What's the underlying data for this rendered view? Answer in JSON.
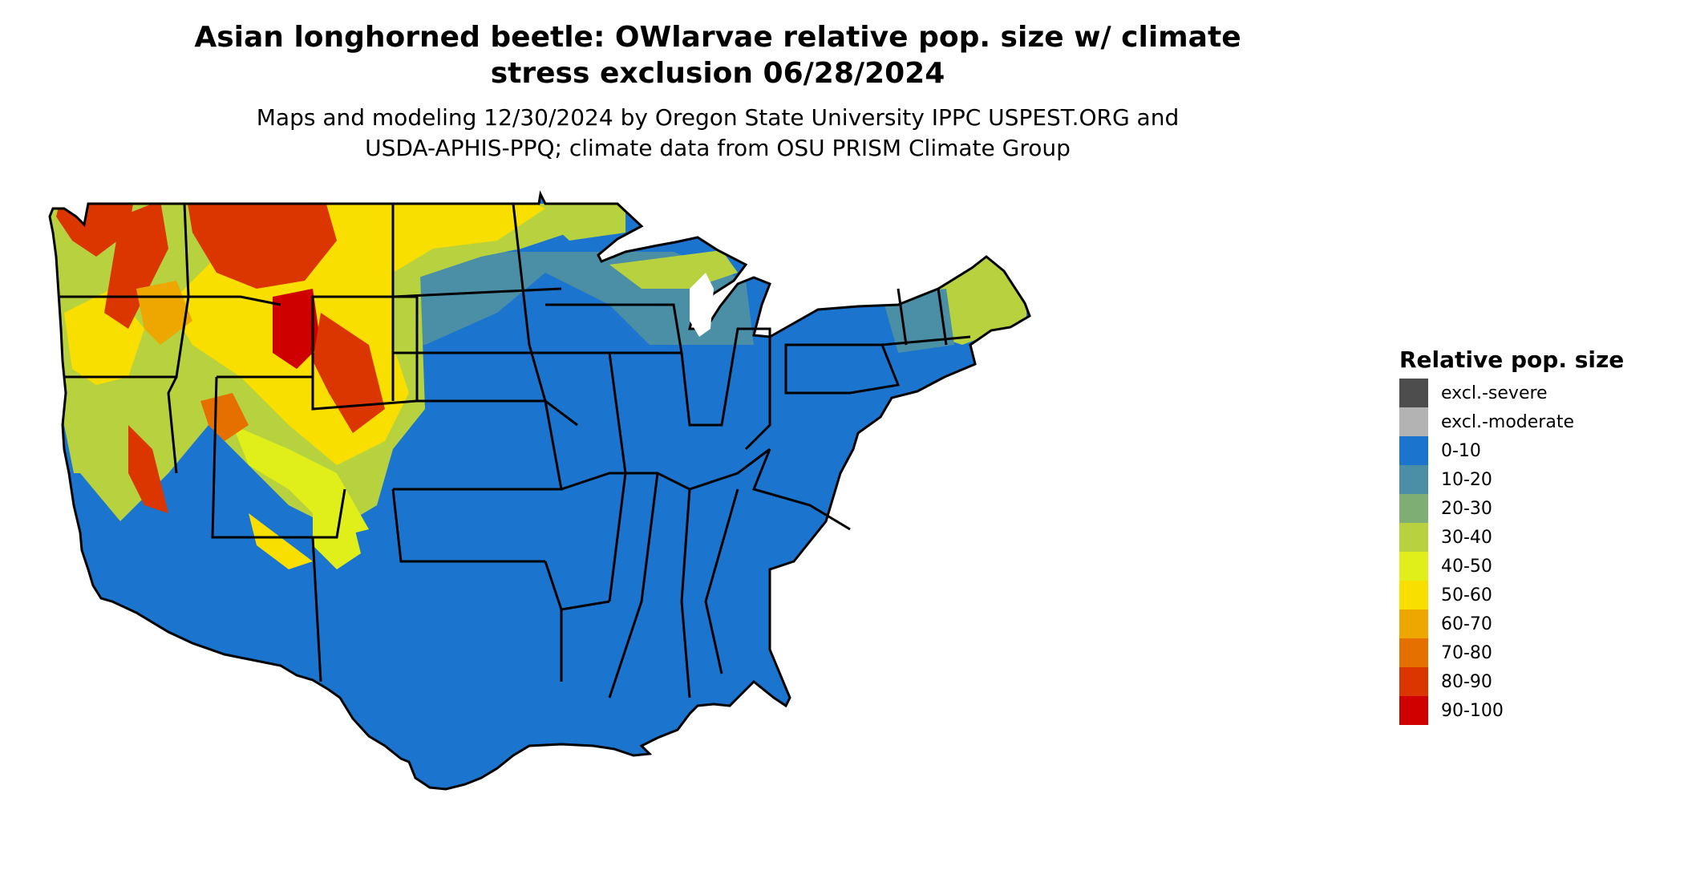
{
  "title_line1": "Asian longhorned beetle: OWlarvae relative pop. size w/ climate",
  "title_line2": "stress exclusion 06/28/2024",
  "subtitle_line1": "Maps and modeling 12/30/2024 by Oregon State University IPPC USPEST.ORG and",
  "subtitle_line2": "USDA-APHIS-PPQ; climate data from OSU PRISM Climate Group",
  "legend": {
    "title": "Relative pop. size",
    "items": [
      {
        "label": "excl.-severe",
        "color": "#4d4d4d"
      },
      {
        "label": "excl.-moderate",
        "color": "#b3b3b3"
      },
      {
        "label": "0-10",
        "color": "#1b75cf"
      },
      {
        "label": "10-20",
        "color": "#4a8fa6"
      },
      {
        "label": "20-30",
        "color": "#7fae74"
      },
      {
        "label": "30-40",
        "color": "#b7d23e"
      },
      {
        "label": "40-50",
        "color": "#e0ef1a"
      },
      {
        "label": "50-60",
        "color": "#f8df00"
      },
      {
        "label": "60-70",
        "color": "#eda700"
      },
      {
        "label": "70-80",
        "color": "#e57000"
      },
      {
        "label": "80-90",
        "color": "#db3500"
      },
      {
        "label": "90-100",
        "color": "#cf0000"
      }
    ]
  }
}
